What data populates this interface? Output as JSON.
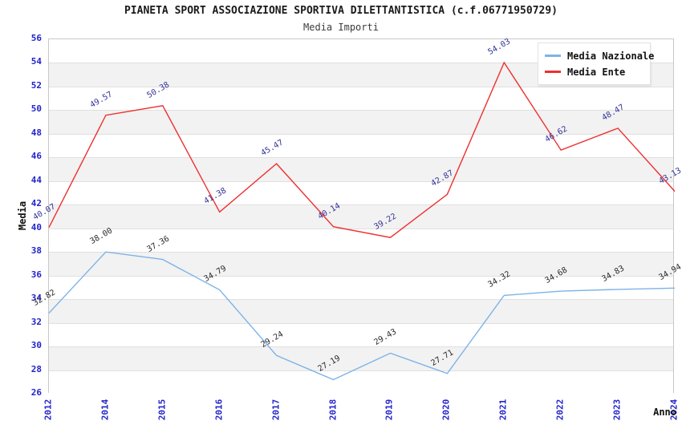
{
  "chart_data": {
    "type": "line",
    "title": "PIANETA SPORT ASSOCIAZIONE SPORTIVA DILETTANTISTICA (c.f.06771950729)",
    "subtitle": "Media Importi",
    "xlabel": "Anno",
    "ylabel": "Media",
    "categories": [
      "2012",
      "2014",
      "2015",
      "2016",
      "2017",
      "2018",
      "2019",
      "2020",
      "2021",
      "2022",
      "2023",
      "2024"
    ],
    "series": [
      {
        "name": "Media Nazionale",
        "color": "#7db3e8",
        "label_color": "#2b2b2b",
        "values": [
          32.82,
          38.0,
          37.36,
          34.79,
          29.24,
          27.19,
          29.43,
          27.71,
          34.32,
          34.68,
          34.83,
          34.94
        ]
      },
      {
        "name": "Media Ente",
        "color": "#ef2f2f",
        "label_color": "#333399",
        "values": [
          40.07,
          49.57,
          50.38,
          41.38,
          45.47,
          40.14,
          39.22,
          42.87,
          54.03,
          46.62,
          48.47,
          43.13
        ]
      }
    ],
    "ylim": [
      26,
      56
    ],
    "y_step": 2,
    "y_ticks": [
      26,
      28,
      30,
      32,
      34,
      36,
      38,
      40,
      42,
      44,
      46,
      48,
      50,
      52,
      54,
      56
    ],
    "grid": true,
    "legend_position": "top-right",
    "x_tick_rotation": -90,
    "data_label_rotation": -30,
    "band_colors": [
      "#ffffff",
      "#f2f2f2"
    ],
    "tick_label_color": "#2323cd"
  }
}
